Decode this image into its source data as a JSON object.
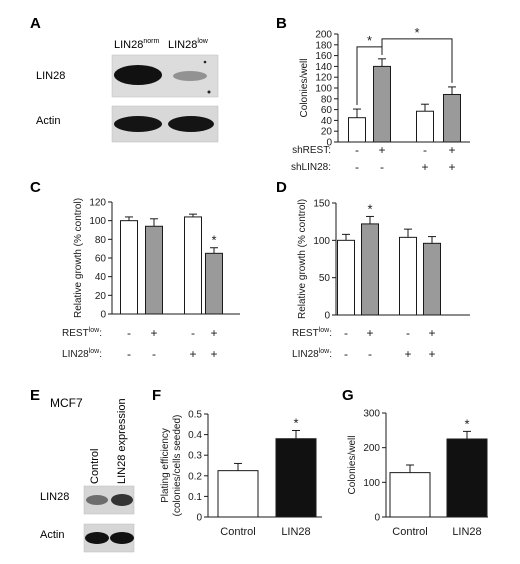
{
  "figure": {
    "panels": {
      "A": {
        "letter": "A",
        "col_labels": [
          {
            "base": "LIN28",
            "sup": "norm"
          },
          {
            "base": "LIN28",
            "sup": "low"
          }
        ],
        "row_labels": [
          "LIN28",
          "Actin"
        ]
      },
      "B": {
        "letter": "B"
      },
      "C": {
        "letter": "C"
      },
      "D": {
        "letter": "D"
      },
      "E": {
        "letter": "E",
        "cell_line": "MCF7",
        "col_labels": [
          "Control",
          "LIN28 expression"
        ],
        "row_labels": [
          "LIN28",
          "Actin"
        ]
      },
      "F": {
        "letter": "F"
      },
      "G": {
        "letter": "G"
      }
    },
    "colors": {
      "white_bar": "#ffffff",
      "gray_bar": "#9a9a9a",
      "black_bar": "#111111",
      "axis": "#1a1a1a"
    }
  },
  "chart_data": [
    {
      "id": "B",
      "type": "bar",
      "ylabel": "Colonies/well",
      "ylim": [
        0,
        200
      ],
      "yticks": [
        "0",
        "20",
        "40",
        "60",
        "80",
        "100",
        "120",
        "140",
        "160",
        "180",
        "200"
      ],
      "values": [
        45,
        140,
        57,
        88
      ],
      "errors": [
        16,
        14,
        13,
        14
      ],
      "fills": [
        "white",
        "gray",
        "white",
        "gray"
      ],
      "conditions": [
        {
          "label": "shREST:",
          "signs": [
            "-",
            "+",
            "-",
            "+"
          ]
        },
        {
          "label": "shLIN28:",
          "signs": [
            "-",
            "-",
            "+",
            "+"
          ]
        }
      ],
      "brackets": [
        {
          "from": 0,
          "to": 1,
          "label": "*"
        },
        {
          "from": 1,
          "to": 3,
          "label": "*"
        }
      ]
    },
    {
      "id": "C",
      "type": "bar",
      "ylabel": "Relative growth (% control)",
      "ylim": [
        0,
        120
      ],
      "yticks": [
        "0",
        "20",
        "40",
        "60",
        "80",
        "100",
        "120"
      ],
      "values": [
        100,
        94,
        104,
        65
      ],
      "errors": [
        4,
        8,
        3,
        6
      ],
      "fills": [
        "white",
        "gray",
        "white",
        "gray"
      ],
      "asterisks": [
        "",
        "",
        "",
        "*"
      ],
      "conditions": [
        {
          "label": "REST",
          "sup": "low",
          "suffix": ":",
          "signs": [
            "-",
            "+",
            "-",
            "+"
          ]
        },
        {
          "label": "LIN28",
          "sup": "low",
          "suffix": ":",
          "signs": [
            "-",
            "-",
            "+",
            "+"
          ]
        }
      ]
    },
    {
      "id": "D",
      "type": "bar",
      "ylabel": "Relative growth (% control)",
      "ylim": [
        0,
        150
      ],
      "yticks": [
        "0",
        "50",
        "100",
        "150"
      ],
      "values": [
        100,
        122,
        104,
        96
      ],
      "errors": [
        8,
        10,
        11,
        9
      ],
      "fills": [
        "white",
        "gray",
        "white",
        "gray"
      ],
      "asterisks": [
        "",
        "*",
        "",
        ""
      ],
      "conditions": [
        {
          "label": "REST",
          "sup": "low",
          "suffix": ":",
          "signs": [
            "-",
            "+",
            "-",
            "+"
          ]
        },
        {
          "label": "LIN28",
          "sup": "low",
          "suffix": ":",
          "signs": [
            "-",
            "-",
            "+",
            "+"
          ]
        }
      ]
    },
    {
      "id": "F",
      "type": "bar",
      "ylabel_lines": [
        "Plating efficiency",
        "(colonies/cells seeded)"
      ],
      "ylim": [
        0,
        0.5
      ],
      "yticks": [
        "0",
        "0.1",
        "0.2",
        "0.3",
        "0.4",
        "0.5"
      ],
      "categories": [
        "Control",
        "LIN28"
      ],
      "values": [
        0.225,
        0.38
      ],
      "errors": [
        0.035,
        0.04
      ],
      "fills": [
        "white",
        "black"
      ],
      "asterisks": [
        "",
        "*"
      ]
    },
    {
      "id": "G",
      "type": "bar",
      "ylabel": "Colonies/well",
      "ylim": [
        0,
        300
      ],
      "yticks": [
        "0",
        "100",
        "200",
        "300"
      ],
      "categories": [
        "Control",
        "LIN28"
      ],
      "values": [
        128,
        225
      ],
      "errors": [
        22,
        22
      ],
      "fills": [
        "white",
        "black"
      ],
      "asterisks": [
        "",
        "*"
      ]
    }
  ]
}
